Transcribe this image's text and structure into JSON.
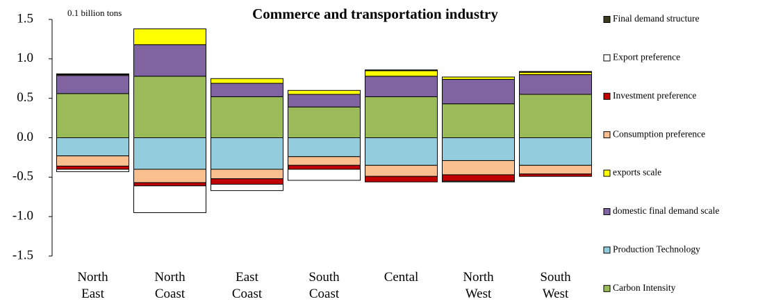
{
  "chart_data": {
    "type": "stacked-bar",
    "title": "Commerce and transportation industry",
    "annotation": "0.1 billion tons",
    "categories": [
      "North East",
      "North Coast",
      "East Coast",
      "South Coast",
      "Cental",
      "North West",
      "South West"
    ],
    "ylim": [
      -1.5,
      1.5
    ],
    "yticks": [
      -1.5,
      {
        "value": -1.0,
        "label": "-1.0"
      },
      -0.5,
      {
        "value": 0,
        "label": "0.0"
      },
      0.5,
      {
        "value": 1.0,
        "label": "1.0"
      },
      1.5
    ],
    "series": [
      {
        "name": "Final demand structure",
        "color": "#3b3b1f",
        "values": [
          0.01,
          0,
          0,
          0,
          0.01,
          0,
          0.01
        ]
      },
      {
        "name": "Export preference",
        "color": "#ffffff",
        "values": [
          -0.03,
          -0.34,
          -0.08,
          -0.14,
          0,
          -0.01,
          0
        ]
      },
      {
        "name": "Investment preference",
        "color": "#c00000",
        "values": [
          -0.04,
          -0.04,
          -0.07,
          -0.05,
          -0.07,
          -0.08,
          -0.03
        ]
      },
      {
        "name": "Consumption preference",
        "color": "#fabf8f",
        "values": [
          -0.13,
          -0.17,
          -0.12,
          -0.11,
          -0.14,
          -0.18,
          -0.11
        ]
      },
      {
        "name": "exports scale",
        "color": "#ffff00",
        "values": [
          0.01,
          0.2,
          0.06,
          0.05,
          0.07,
          0.03,
          0.03
        ]
      },
      {
        "name": "domestic final demand scale",
        "color": "#8064a2",
        "values": [
          0.23,
          0.4,
          0.17,
          0.16,
          0.26,
          0.31,
          0.25
        ]
      },
      {
        "name": "Production Technology",
        "color": "#93cddd",
        "values": [
          -0.23,
          -0.4,
          -0.4,
          -0.24,
          -0.35,
          -0.29,
          -0.35
        ]
      },
      {
        "name": "Carbon Intensity",
        "color": "#9bbb59",
        "values": [
          0.56,
          0.78,
          0.52,
          0.39,
          0.52,
          0.43,
          0.55
        ]
      }
    ]
  }
}
